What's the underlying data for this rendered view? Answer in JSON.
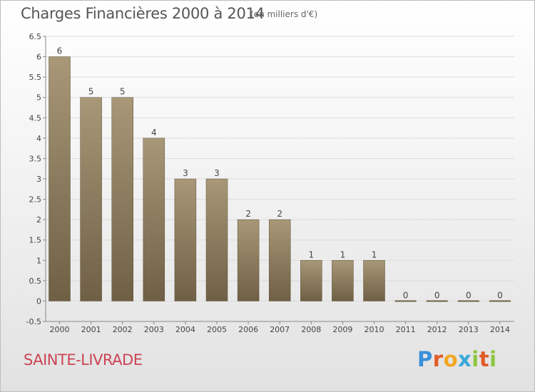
{
  "header": {
    "title": "Charges Financières 2000 à 2014",
    "unit": "(en milliers d'€)"
  },
  "footer": {
    "commune": "SAINTE-LIVRADE",
    "logo_letters": [
      "P",
      "r",
      "o",
      "x",
      "i",
      "t",
      "i"
    ],
    "logo_colors": [
      "#3a8fd9",
      "#e25b26",
      "#f2a623",
      "#39a8d8",
      "#8cc63f",
      "#e25b26",
      "#8cc63f"
    ]
  },
  "chart_data": {
    "type": "bar",
    "categories": [
      "2000",
      "2001",
      "2002",
      "2003",
      "2004",
      "2005",
      "2006",
      "2007",
      "2008",
      "2009",
      "2010",
      "2011",
      "2012",
      "2013",
      "2014"
    ],
    "values": [
      6,
      5,
      5,
      4,
      3,
      3,
      2,
      2,
      1,
      1,
      1,
      0,
      0,
      0,
      0
    ],
    "data_labels": [
      "6",
      "5",
      "5",
      "4",
      "3",
      "3",
      "2",
      "2",
      "1",
      "1",
      "1",
      "0",
      "0",
      "0",
      "0"
    ],
    "title": "Charges Financières 2000 à 2014",
    "xlabel": "",
    "ylabel": "",
    "ylim": [
      -0.5,
      6.5
    ],
    "yticks": [
      -0.5,
      0,
      0.5,
      1,
      1.5,
      2,
      2.5,
      3,
      3.5,
      4,
      4.5,
      5,
      5.5,
      6,
      6.5
    ],
    "ytick_labels": [
      "-0.5",
      "0",
      "0.5",
      "1",
      "1.5",
      "2",
      "2.5",
      "3",
      "3.5",
      "4",
      "4.5",
      "5",
      "5.5",
      "6",
      "6.5"
    ],
    "grid": true,
    "bar_color_top": "#a89878",
    "bar_color_bottom": "#6f5f45"
  }
}
